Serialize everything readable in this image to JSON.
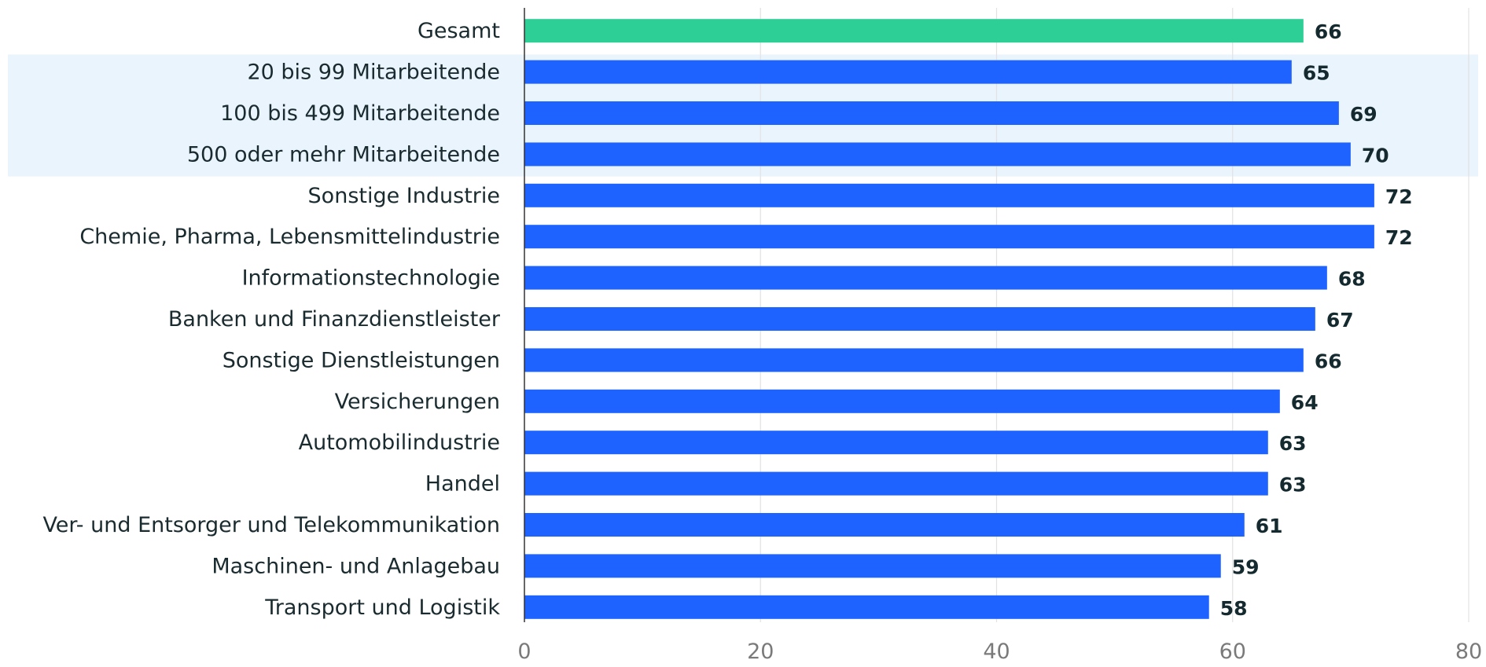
{
  "chart_data": {
    "type": "bar",
    "orientation": "horizontal",
    "categories": [
      "Gesamt",
      "20 bis 99 Mitarbeitende",
      "100 bis 499 Mitarbeitende",
      "500 oder mehr Mitarbeitende",
      "Sonstige Industrie",
      "Chemie, Pharma, Lebensmittelindustrie",
      "Informationstechnologie",
      "Banken und Finanzdienstleister",
      "Sonstige Dienstleistungen",
      "Versicherungen",
      "Automobilindustrie",
      "Handel",
      "Ver- und Entsorger und Telekommunikation",
      "Maschinen- und Anlagebau",
      "Transport und Logistik"
    ],
    "values": [
      66,
      65,
      69,
      70,
      72,
      72,
      68,
      67,
      66,
      64,
      63,
      63,
      61,
      59,
      58
    ],
    "xlim": [
      0,
      80
    ],
    "xticks": [
      0,
      20,
      40,
      60,
      80
    ],
    "grid": true,
    "highlighted_categories": [
      1,
      2,
      3
    ],
    "colors": {
      "total_bar": "#2ecf96",
      "bar": "#1e62ff",
      "highlight_band": "#eaf4fd"
    }
  }
}
